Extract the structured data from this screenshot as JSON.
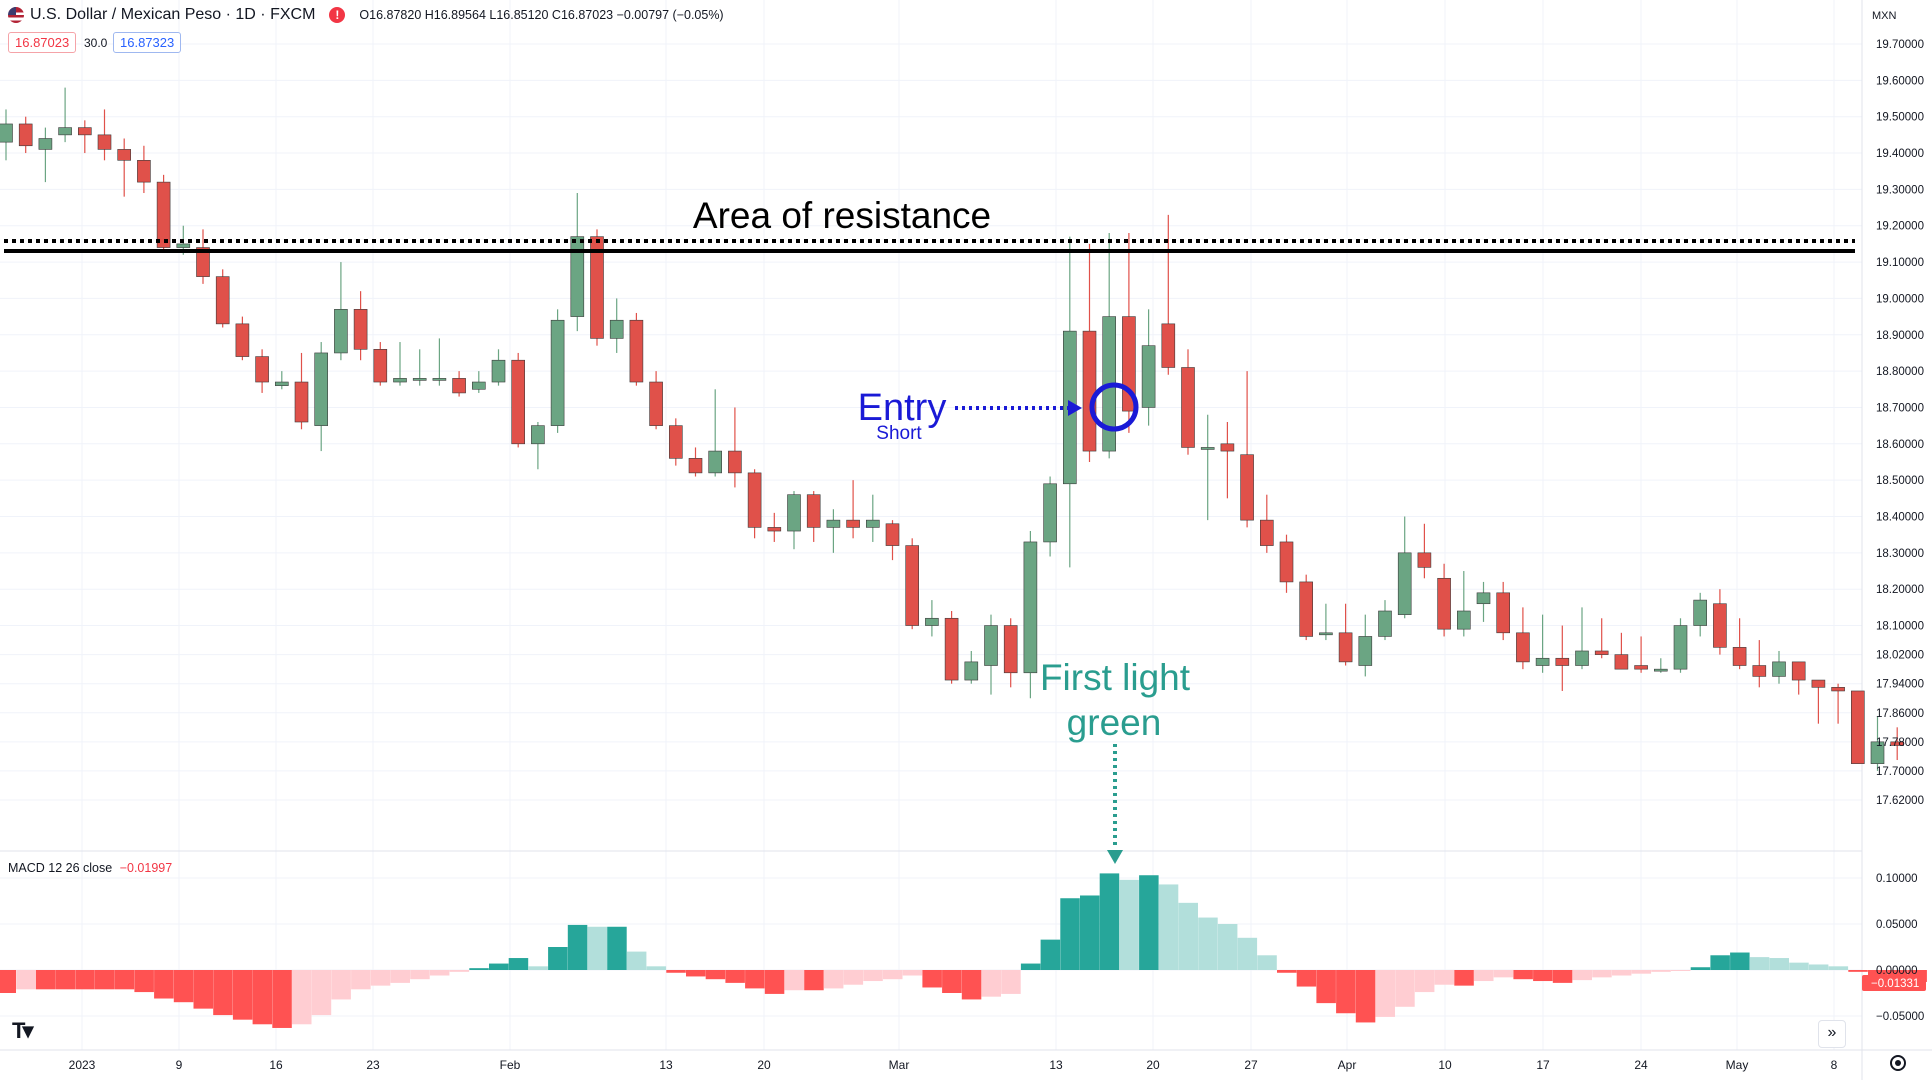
{
  "header": {
    "symbol": "U.S. Dollar / Mexican Peso · 1D · FXCM",
    "ohlc_text": "O16.87820 H16.89564 L16.85120 C16.87023 −0.00797 (−0.05%)",
    "sell_price": "16.87023",
    "spread": "30.0",
    "buy_price": "16.87323",
    "alert_glyph": "!"
  },
  "price_axis": {
    "currency": "MXN",
    "labels": [
      "19.70000",
      "19.60000",
      "19.50000",
      "19.40000",
      "19.30000",
      "19.20000",
      "19.10000",
      "19.00000",
      "18.90000",
      "18.80000",
      "18.70000",
      "18.60000",
      "18.50000",
      "18.40000",
      "18.30000",
      "18.20000",
      "18.10000",
      "18.02000",
      "17.94000",
      "17.86000",
      "17.78000",
      "17.70000",
      "17.62000"
    ]
  },
  "macd_axis": {
    "labels": [
      "0.10000",
      "0.05000",
      "0.00000",
      "−0.05000"
    ],
    "current_value": "−0.01331"
  },
  "macd_legend": {
    "label": "MACD 12 26 close",
    "value": "−0.01997"
  },
  "time_axis": {
    "labels": [
      "2023",
      "9",
      "16",
      "23",
      "Feb",
      "13",
      "20",
      "Mar",
      "13",
      "20",
      "27",
      "Apr",
      "10",
      "17",
      "24",
      "May",
      "8"
    ]
  },
  "annotations": {
    "resistance": "Area of resistance",
    "entry": "Entry",
    "entry_sub": "Short",
    "first_green_line1": "First light",
    "first_green_line2": "green"
  },
  "icons": [
    "usd-flag-icon",
    "alert-icon",
    "tradingview-logo-icon",
    "chevrons-right-icon",
    "settings-icon"
  ],
  "colors": {
    "up": "#6ba583",
    "down": "#e0514a",
    "macd_strong_pos": "#26a69a",
    "macd_weak_pos": "#b2dfdb",
    "macd_strong_neg": "#ff5252",
    "macd_weak_neg": "#ffcdd2",
    "entry": "#1a1ad6",
    "first_green": "#2a9d8f",
    "resistance": "#000000"
  },
  "chart_data": [
    {
      "type": "candlestick",
      "title": "U.S. Dollar / Mexican Peso · 1D · FXCM",
      "x_labels": [
        "2023",
        "9",
        "16",
        "23",
        "Feb",
        "13",
        "20",
        "Mar",
        "13",
        "20",
        "27",
        "Apr",
        "10",
        "17",
        "24",
        "May",
        "8"
      ],
      "y_range": [
        17.58,
        19.74
      ],
      "resistance_level": 19.135,
      "candles": [
        [
          19.43,
          19.48,
          19.38,
          19.52
        ],
        [
          19.48,
          19.42,
          19.4,
          19.5
        ],
        [
          19.41,
          19.44,
          19.32,
          19.47
        ],
        [
          19.45,
          19.47,
          19.43,
          19.58
        ],
        [
          19.47,
          19.45,
          19.4,
          19.49
        ],
        [
          19.45,
          19.41,
          19.38,
          19.52
        ],
        [
          19.41,
          19.38,
          19.28,
          19.44
        ],
        [
          19.38,
          19.32,
          19.29,
          19.42
        ],
        [
          19.32,
          19.14,
          19.13,
          19.34
        ],
        [
          19.14,
          19.15,
          19.12,
          19.2
        ],
        [
          19.14,
          19.06,
          19.04,
          19.19
        ],
        [
          19.06,
          18.93,
          18.92,
          19.08
        ],
        [
          18.93,
          18.84,
          18.83,
          18.95
        ],
        [
          18.84,
          18.77,
          18.74,
          18.86
        ],
        [
          18.76,
          18.77,
          18.75,
          18.8
        ],
        [
          18.77,
          18.66,
          18.64,
          18.85
        ],
        [
          18.65,
          18.85,
          18.58,
          18.88
        ],
        [
          18.85,
          18.97,
          18.83,
          19.1
        ],
        [
          18.97,
          18.86,
          18.83,
          19.02
        ],
        [
          18.86,
          18.77,
          18.76,
          18.88
        ],
        [
          18.77,
          18.78,
          18.76,
          18.88
        ],
        [
          18.78,
          18.78,
          18.76,
          18.86
        ],
        [
          18.78,
          18.78,
          18.76,
          18.89
        ],
        [
          18.78,
          18.74,
          18.73,
          18.8
        ],
        [
          18.75,
          18.77,
          18.74,
          18.8
        ],
        [
          18.77,
          18.83,
          18.76,
          18.86
        ],
        [
          18.83,
          18.6,
          18.59,
          18.85
        ],
        [
          18.6,
          18.65,
          18.53,
          18.66
        ],
        [
          18.65,
          18.94,
          18.63,
          18.97
        ],
        [
          18.95,
          19.17,
          18.91,
          19.29
        ],
        [
          19.17,
          18.89,
          18.87,
          19.19
        ],
        [
          18.89,
          18.94,
          18.85,
          19.0
        ],
        [
          18.94,
          18.77,
          18.76,
          18.96
        ],
        [
          18.77,
          18.65,
          18.64,
          18.8
        ],
        [
          18.65,
          18.56,
          18.54,
          18.67
        ],
        [
          18.56,
          18.52,
          18.51,
          18.59
        ],
        [
          18.52,
          18.58,
          18.51,
          18.75
        ],
        [
          18.58,
          18.52,
          18.48,
          18.7
        ],
        [
          18.52,
          18.37,
          18.34,
          18.53
        ],
        [
          18.37,
          18.36,
          18.33,
          18.41
        ],
        [
          18.36,
          18.46,
          18.31,
          18.47
        ],
        [
          18.46,
          18.37,
          18.33,
          18.47
        ],
        [
          18.37,
          18.39,
          18.3,
          18.42
        ],
        [
          18.39,
          18.37,
          18.34,
          18.5
        ],
        [
          18.37,
          18.39,
          18.33,
          18.46
        ],
        [
          18.38,
          18.32,
          18.28,
          18.39
        ],
        [
          18.32,
          18.1,
          18.09,
          18.34
        ],
        [
          18.1,
          18.12,
          18.07,
          18.17
        ],
        [
          18.12,
          17.95,
          17.94,
          18.14
        ],
        [
          17.95,
          18.0,
          17.94,
          18.03
        ],
        [
          17.99,
          18.1,
          17.91,
          18.13
        ],
        [
          18.1,
          17.97,
          17.93,
          18.12
        ],
        [
          17.97,
          18.33,
          17.9,
          18.36
        ],
        [
          18.33,
          18.49,
          18.29,
          18.51
        ],
        [
          18.49,
          18.91,
          18.26,
          19.17
        ],
        [
          18.91,
          18.58,
          18.55,
          19.15
        ],
        [
          18.58,
          18.95,
          18.56,
          19.18
        ],
        [
          18.95,
          18.69,
          18.63,
          19.18
        ],
        [
          18.7,
          18.87,
          18.65,
          18.97
        ],
        [
          18.93,
          18.81,
          18.79,
          19.23
        ],
        [
          18.81,
          18.59,
          18.57,
          18.86
        ],
        [
          18.59,
          18.59,
          18.39,
          18.68
        ],
        [
          18.6,
          18.58,
          18.45,
          18.66
        ],
        [
          18.57,
          18.39,
          18.37,
          18.8
        ],
        [
          18.39,
          18.32,
          18.3,
          18.46
        ],
        [
          18.33,
          18.22,
          18.19,
          18.35
        ],
        [
          18.22,
          18.07,
          18.06,
          18.24
        ],
        [
          18.08,
          18.08,
          18.06,
          18.16
        ],
        [
          18.08,
          18.0,
          17.99,
          18.16
        ],
        [
          17.99,
          18.07,
          17.96,
          18.13
        ],
        [
          18.07,
          18.14,
          18.06,
          18.17
        ],
        [
          18.13,
          18.3,
          18.12,
          18.4
        ],
        [
          18.3,
          18.26,
          18.23,
          18.38
        ],
        [
          18.23,
          18.09,
          18.07,
          18.27
        ],
        [
          18.09,
          18.14,
          18.07,
          18.25
        ],
        [
          18.16,
          18.19,
          18.11,
          18.22
        ],
        [
          18.19,
          18.08,
          18.06,
          18.22
        ],
        [
          18.08,
          18.0,
          17.98,
          18.15
        ],
        [
          17.99,
          18.01,
          17.97,
          18.13
        ],
        [
          18.01,
          17.99,
          17.92,
          18.1
        ],
        [
          17.99,
          18.03,
          17.98,
          18.15
        ],
        [
          18.03,
          18.02,
          18.01,
          18.12
        ],
        [
          18.02,
          17.98,
          17.98,
          18.08
        ],
        [
          17.99,
          17.98,
          17.97,
          18.07
        ],
        [
          17.98,
          17.98,
          17.97,
          18.01
        ],
        [
          17.98,
          18.1,
          17.97,
          18.12
        ],
        [
          18.1,
          18.17,
          18.07,
          18.19
        ],
        [
          18.16,
          18.04,
          18.02,
          18.2
        ],
        [
          18.04,
          17.99,
          17.98,
          18.12
        ],
        [
          17.99,
          17.96,
          17.93,
          18.06
        ],
        [
          17.96,
          18.0,
          17.94,
          18.03
        ],
        [
          18.0,
          17.95,
          17.91,
          18.0
        ],
        [
          17.95,
          17.93,
          17.83,
          17.95
        ],
        [
          17.93,
          17.92,
          17.83,
          17.94
        ],
        [
          17.92,
          17.72,
          17.72,
          17.92
        ],
        [
          17.72,
          17.78,
          17.7,
          17.85
        ],
        [
          17.78,
          17.77,
          17.73,
          17.82
        ]
      ]
    },
    {
      "type": "bar",
      "title": "MACD 12 26 close",
      "y_range": [
        -0.072,
        0.128
      ],
      "values": [
        -0.025,
        -0.021,
        -0.021,
        -0.021,
        -0.021,
        -0.021,
        -0.021,
        -0.024,
        -0.031,
        -0.035,
        -0.042,
        -0.049,
        -0.054,
        -0.059,
        -0.063,
        -0.059,
        -0.049,
        -0.032,
        -0.021,
        -0.017,
        -0.014,
        -0.01,
        -0.006,
        -0.002,
        0.002,
        0.007,
        0.013,
        0.004,
        0.025,
        0.049,
        0.047,
        0.047,
        0.02,
        0.004,
        -0.003,
        -0.007,
        -0.01,
        -0.014,
        -0.02,
        -0.026,
        -0.022,
        -0.022,
        -0.02,
        -0.016,
        -0.012,
        -0.01,
        -0.006,
        -0.019,
        -0.025,
        -0.032,
        -0.029,
        -0.026,
        0.007,
        0.033,
        0.078,
        0.081,
        0.105,
        0.098,
        0.103,
        0.093,
        0.073,
        0.057,
        0.05,
        0.035,
        0.016,
        -0.003,
        -0.018,
        -0.036,
        -0.047,
        -0.057,
        -0.051,
        -0.04,
        -0.024,
        -0.016,
        -0.017,
        -0.012,
        -0.008,
        -0.01,
        -0.012,
        -0.014,
        -0.011,
        -0.008,
        -0.006,
        -0.004,
        -0.002,
        -0.001,
        0.003,
        0.016,
        0.019,
        0.014,
        0.013,
        0.008,
        0.006,
        0.004,
        -0.002,
        -0.008,
        -0.011,
        -0.013
      ]
    }
  ]
}
